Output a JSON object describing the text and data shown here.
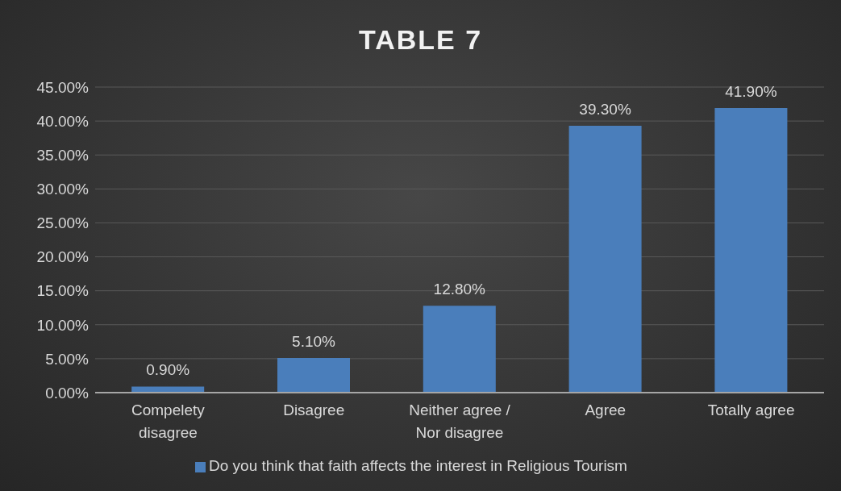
{
  "chart_data": {
    "type": "bar",
    "title": "TABLE 7",
    "categories": [
      "Compelety disagree",
      "Disagree",
      "Neither agree / Nor disagree",
      "Agree",
      "Totally agree"
    ],
    "series": [
      {
        "name": "Do you think that faith affects the interest in Religious Tourism",
        "color": "#4a7ebb",
        "values": [
          0.9,
          5.1,
          12.8,
          39.3,
          41.9
        ],
        "value_labels": [
          "0.90%",
          "5.10%",
          "12.80%",
          "39.30%",
          "41.90%"
        ]
      }
    ],
    "ylim": [
      0,
      45
    ],
    "yticks": [
      {
        "value": 0,
        "label": "0.00%"
      },
      {
        "value": 5,
        "label": "5.00%"
      },
      {
        "value": 10,
        "label": "10.00%"
      },
      {
        "value": 15,
        "label": "15.00%"
      },
      {
        "value": 20,
        "label": "20.00%"
      },
      {
        "value": 25,
        "label": "25.00%"
      },
      {
        "value": 30,
        "label": "30.00%"
      },
      {
        "value": 35,
        "label": "35.00%"
      },
      {
        "value": 40,
        "label": "40.00%"
      },
      {
        "value": 45,
        "label": "45.00%"
      }
    ],
    "grid": "y",
    "legend": "bottom"
  }
}
